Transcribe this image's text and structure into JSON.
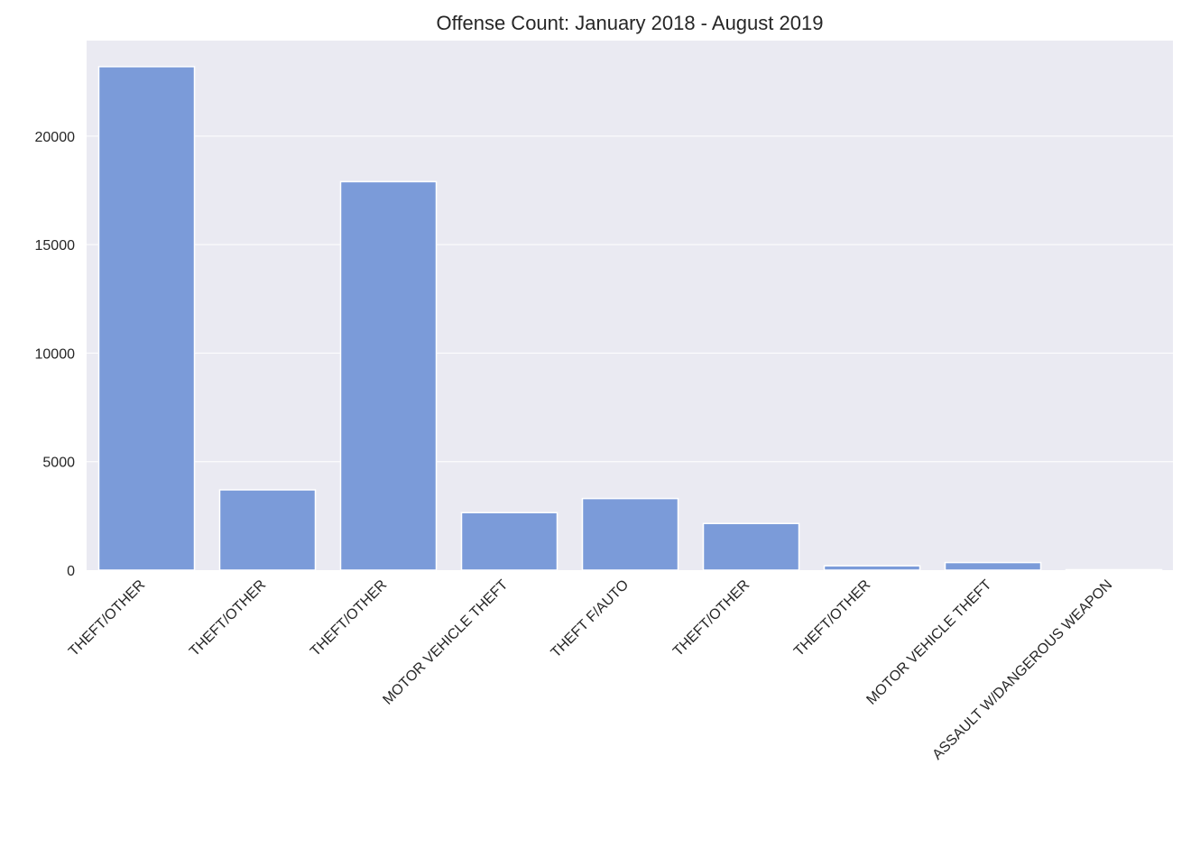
{
  "chart_data": {
    "type": "bar",
    "title": "Offense Count: January 2018 - August 2019",
    "xlabel": "",
    "ylabel": "",
    "categories": [
      "THEFT/OTHER",
      "THEFT/OTHER",
      "THEFT/OTHER",
      "MOTOR VEHICLE THEFT",
      "THEFT F/AUTO",
      "THEFT/OTHER",
      "THEFT/OTHER",
      "MOTOR VEHICLE THEFT",
      "ASSAULT W/DANGEROUS WEAPON"
    ],
    "values": [
      23200,
      3700,
      17900,
      2650,
      3300,
      2150,
      200,
      350,
      20
    ],
    "ylim": [
      0,
      24400
    ],
    "yticks": [
      0,
      5000,
      10000,
      15000,
      20000
    ],
    "ytick_labels": [
      "0",
      "5000",
      "10000",
      "15000",
      "20000"
    ],
    "grid": true,
    "legend": "none",
    "colors": {
      "bar": "#7b9bd9",
      "plot_background": "#eaeaf2",
      "grid": "#ffffff",
      "text": "#262626"
    }
  }
}
